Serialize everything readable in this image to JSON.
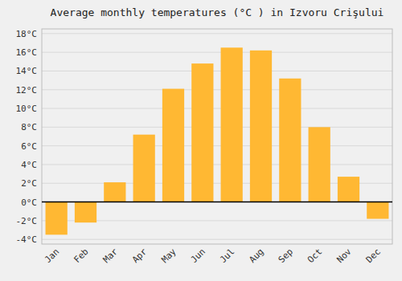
{
  "chart_data": {
    "type": "bar",
    "title": "Average monthly temperatures (°C ) in Izvoru Crişului",
    "categories": [
      "Jan",
      "Feb",
      "Mar",
      "Apr",
      "May",
      "Jun",
      "Jul",
      "Aug",
      "Sep",
      "Oct",
      "Nov",
      "Dec"
    ],
    "values": [
      -3.5,
      -2.2,
      2.1,
      7.2,
      12.1,
      14.8,
      16.5,
      16.2,
      13.2,
      8.0,
      2.7,
      -1.8
    ],
    "color": "#FFB833",
    "ylim": [
      -4.5,
      18.5
    ],
    "yticks": [
      {
        "value": -4,
        "label": "-4°C"
      },
      {
        "value": -2,
        "label": "-2°C"
      },
      {
        "value": 0,
        "label": "0°C"
      },
      {
        "value": 2,
        "label": "2°C"
      },
      {
        "value": 4,
        "label": "4°C"
      },
      {
        "value": 6,
        "label": "6°C"
      },
      {
        "value": 8,
        "label": "8°C"
      },
      {
        "value": 10,
        "label": "10°C"
      },
      {
        "value": 12,
        "label": "12°C"
      },
      {
        "value": 14,
        "label": "14°C"
      },
      {
        "value": 16,
        "label": "16°C"
      },
      {
        "value": 18,
        "label": "18°C"
      }
    ],
    "grid": true
  }
}
